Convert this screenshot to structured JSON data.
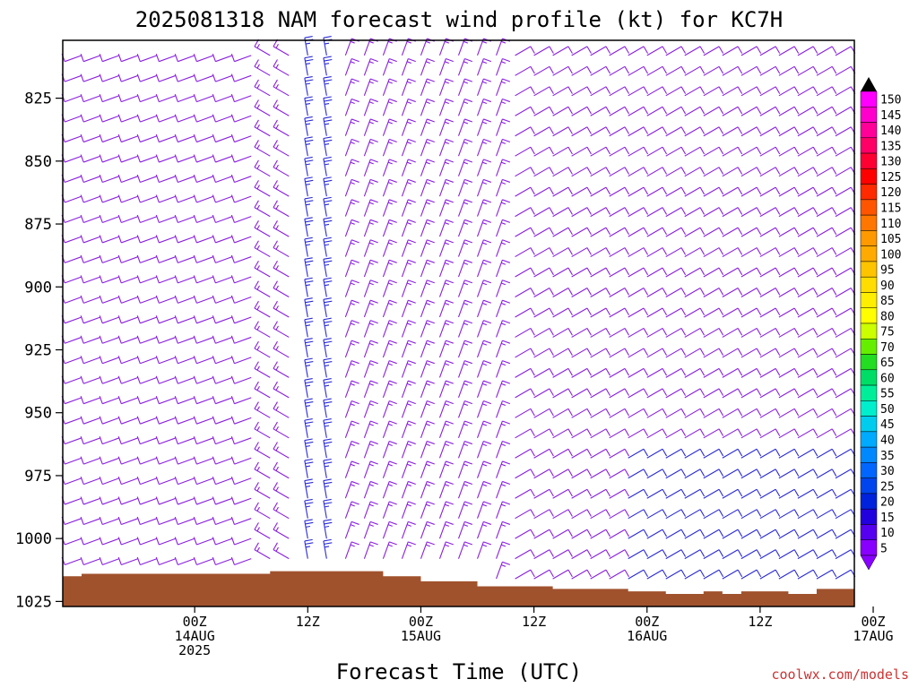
{
  "title": "2025081318 NAM forecast wind profile (kt) for KC7H",
  "xlabel": "Forecast Time (UTC)",
  "credit": "coolwx.com/models",
  "colors": {
    "barb_default": "#8a1fe0",
    "barb_strong": "#2a2ad8",
    "ground": "#a0522d",
    "credit": "#cc3333"
  },
  "chart_data": {
    "type": "wind-barb-profile",
    "title": "2025081318 NAM forecast wind profile (kt) for KC7H",
    "xlabel": "Forecast Time (UTC)",
    "ylabel": "",
    "units": "kt",
    "y_axis": {
      "inverted": true,
      "ylim": [
        1027,
        802
      ],
      "ticks": [
        825,
        850,
        875,
        900,
        925,
        950,
        975,
        1000,
        1025
      ],
      "tick_labels": [
        "825",
        "850",
        "875",
        "900",
        "925",
        "950",
        "975",
        "1000",
        "1025"
      ]
    },
    "x_axis": {
      "xlim_hours": [
        -14,
        70
      ],
      "ticks": [
        {
          "hour": 0,
          "lines": [
            "00Z",
            "14AUG",
            "2025"
          ]
        },
        {
          "hour": 12,
          "lines": [
            "12Z"
          ]
        },
        {
          "hour": 24,
          "lines": [
            "00Z",
            "15AUG"
          ]
        },
        {
          "hour": 36,
          "lines": [
            "12Z"
          ]
        },
        {
          "hour": 48,
          "lines": [
            "00Z",
            "16AUG"
          ]
        },
        {
          "hour": 60,
          "lines": [
            "12Z"
          ]
        },
        {
          "hour": 72,
          "lines": [
            "00Z",
            "17AUG"
          ]
        }
      ]
    },
    "colorbar": {
      "labels": [
        "150",
        "145",
        "140",
        "135",
        "130",
        "125",
        "120",
        "115",
        "110",
        "105",
        "100",
        "95",
        "90",
        "85",
        "80",
        "75",
        "70",
        "65",
        "60",
        "55",
        "50",
        "45",
        "40",
        "35",
        "30",
        "25",
        "20",
        "15",
        "10",
        "5"
      ],
      "colors": [
        "#ff00ff",
        "#ff00cc",
        "#ff0099",
        "#ff0066",
        "#ff0033",
        "#ff0000",
        "#ff2a00",
        "#ff5500",
        "#ff7700",
        "#ff9900",
        "#ffaa00",
        "#ffc400",
        "#ffdd00",
        "#ffee00",
        "#ffff00",
        "#ccff00",
        "#66ee00",
        "#22dd22",
        "#00dd66",
        "#00ee99",
        "#00eecc",
        "#00ccee",
        "#00aaff",
        "#0088ff",
        "#0066ff",
        "#0044ee",
        "#0022dd",
        "#2200dd",
        "#5500ee",
        "#8800ff"
      ]
    },
    "surface_pressure": [
      {
        "hours": [
          -14,
          -12
        ],
        "p": 1015
      },
      {
        "hours": [
          -12,
          8
        ],
        "p": 1014
      },
      {
        "hours": [
          8,
          20
        ],
        "p": 1013
      },
      {
        "hours": [
          20,
          24
        ],
        "p": 1015
      },
      {
        "hours": [
          24,
          30
        ],
        "p": 1017
      },
      {
        "hours": [
          30,
          38
        ],
        "p": 1019
      },
      {
        "hours": [
          38,
          46
        ],
        "p": 1020
      },
      {
        "hours": [
          46,
          50
        ],
        "p": 1021
      },
      {
        "hours": [
          50,
          54
        ],
        "p": 1022
      },
      {
        "hours": [
          54,
          56
        ],
        "p": 1021
      },
      {
        "hours": [
          56,
          58
        ],
        "p": 1022
      },
      {
        "hours": [
          58,
          63
        ],
        "p": 1021
      },
      {
        "hours": [
          63,
          66
        ],
        "p": 1022
      },
      {
        "hours": [
          66,
          70
        ],
        "p": 1020
      }
    ],
    "wind_regimes": [
      {
        "hours": [
          -14,
          8
        ],
        "direction_deg": 250,
        "speed_kt": 12
      },
      {
        "hours": [
          8,
          12
        ],
        "direction_deg": 300,
        "speed_kt": 15
      },
      {
        "hours": [
          12,
          16
        ],
        "direction_deg": 350,
        "speed_kt": 25
      },
      {
        "hours": [
          16,
          34
        ],
        "direction_deg": 20,
        "speed_kt": 15
      },
      {
        "hours": [
          34,
          70
        ],
        "direction_deg": 60,
        "speed_kt": 12
      }
    ]
  }
}
